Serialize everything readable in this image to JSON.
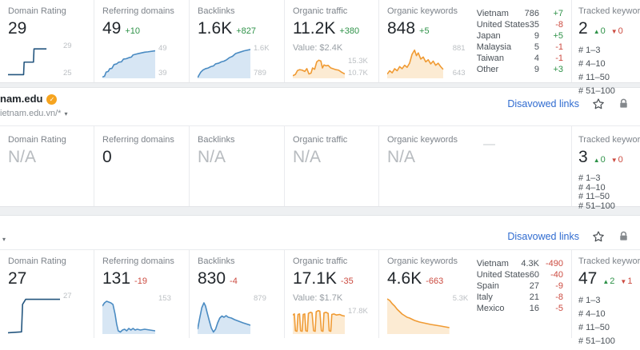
{
  "icons": {
    "up": "▲",
    "down": "▼",
    "caret": "▾",
    "check": "✓"
  },
  "colors": {
    "green": "#2e9248",
    "red": "#cc4b40",
    "link_blue": "#2f6bd0",
    "chart_blue": "#4a8bc2",
    "chart_navy": "#24567f",
    "chart_orange": "#f09b34",
    "badge_orange": "#f6a41f"
  },
  "row1": {
    "dr": {
      "label": "Domain Rating",
      "value": "29",
      "ymax": "29",
      "ymin": "25",
      "spark": {
        "color": "#24567f",
        "fill": false,
        "points": [
          [
            0,
            90
          ],
          [
            30,
            90
          ],
          [
            31,
            56
          ],
          [
            49,
            56
          ],
          [
            50,
            20
          ],
          [
            74,
            20
          ]
        ]
      }
    },
    "rd": {
      "label": "Referring domains",
      "value": "49",
      "delta": "+10",
      "dclass": "delta up",
      "ymax": "49",
      "ymin": "39",
      "spark": {
        "color": "#4a8bc2",
        "fill": true,
        "fillColor": "rgba(122,171,219,0.30)",
        "points": [
          [
            0,
            96
          ],
          [
            4,
            94
          ],
          [
            7,
            82
          ],
          [
            11,
            80
          ],
          [
            14,
            72
          ],
          [
            18,
            71
          ],
          [
            22,
            60
          ],
          [
            27,
            58
          ],
          [
            31,
            53
          ],
          [
            36,
            52
          ],
          [
            40,
            44
          ],
          [
            45,
            43
          ],
          [
            50,
            40
          ],
          [
            55,
            38
          ],
          [
            58,
            32
          ],
          [
            63,
            30
          ],
          [
            68,
            28
          ],
          [
            74,
            26
          ],
          [
            80,
            24
          ],
          [
            86,
            23
          ],
          [
            100,
            20
          ]
        ]
      }
    },
    "bl": {
      "label": "Backlinks",
      "value": "1.6K",
      "delta": "+827",
      "dclass": "delta up",
      "ymax": "1.6K",
      "ymin": "789",
      "spark": {
        "color": "#4a8bc2",
        "fill": true,
        "fillColor": "rgba(122,171,219,0.30)",
        "points": [
          [
            0,
            98
          ],
          [
            6,
            82
          ],
          [
            10,
            76
          ],
          [
            15,
            72
          ],
          [
            20,
            70
          ],
          [
            25,
            66
          ],
          [
            30,
            64
          ],
          [
            34,
            58
          ],
          [
            40,
            56
          ],
          [
            45,
            52
          ],
          [
            50,
            50
          ],
          [
            55,
            46
          ],
          [
            60,
            40
          ],
          [
            66,
            36
          ],
          [
            72,
            28
          ],
          [
            80,
            24
          ],
          [
            88,
            20
          ],
          [
            100,
            16
          ]
        ]
      }
    },
    "ot": {
      "label": "Organic traffic",
      "value": "11.2K",
      "delta": "+380",
      "dclass": "delta up",
      "subvalue": "Value: $2.4K",
      "ymax": "15.3K",
      "ymin": "10.7K",
      "spark": {
        "color": "#f09b34",
        "fill": true,
        "fillColor": "rgba(243,166,56,0.22)",
        "points": [
          [
            0,
            88
          ],
          [
            5,
            82
          ],
          [
            9,
            64
          ],
          [
            13,
            60
          ],
          [
            18,
            62
          ],
          [
            23,
            68
          ],
          [
            27,
            55
          ],
          [
            31,
            80
          ],
          [
            35,
            76
          ],
          [
            38,
            52
          ],
          [
            42,
            58
          ],
          [
            46,
            24
          ],
          [
            50,
            16
          ],
          [
            54,
            20
          ],
          [
            57,
            52
          ],
          [
            60,
            38
          ],
          [
            64,
            42
          ],
          [
            68,
            40
          ],
          [
            73,
            52
          ],
          [
            78,
            56
          ],
          [
            83,
            60
          ],
          [
            88,
            62
          ],
          [
            94,
            72
          ],
          [
            100,
            80
          ]
        ]
      }
    },
    "ok": {
      "label": "Organic keywords",
      "value": "848",
      "delta": "+5",
      "dclass": "delta up",
      "ymax": "881",
      "ymin": "643",
      "spark": {
        "color": "#f09b34",
        "fill": true,
        "fillColor": "rgba(243,166,56,0.22)",
        "points": [
          [
            0,
            88
          ],
          [
            4,
            78
          ],
          [
            8,
            84
          ],
          [
            12,
            72
          ],
          [
            16,
            78
          ],
          [
            20,
            66
          ],
          [
            24,
            72
          ],
          [
            28,
            62
          ],
          [
            32,
            68
          ],
          [
            36,
            56
          ],
          [
            40,
            30
          ],
          [
            44,
            18
          ],
          [
            47,
            34
          ],
          [
            50,
            26
          ],
          [
            54,
            44
          ],
          [
            58,
            38
          ],
          [
            62,
            52
          ],
          [
            66,
            46
          ],
          [
            70,
            58
          ],
          [
            74,
            50
          ],
          [
            78,
            62
          ],
          [
            82,
            56
          ],
          [
            86,
            66
          ],
          [
            90,
            74
          ]
        ]
      }
    },
    "countries": [
      {
        "name": "Vietnam",
        "value": "786",
        "delta": "+7",
        "dir": "up"
      },
      {
        "name": "United States",
        "value": "35",
        "delta": "-8",
        "dir": "down"
      },
      {
        "name": "Japan",
        "value": "9",
        "delta": "+5",
        "dir": "up"
      },
      {
        "name": "Malaysia",
        "value": "5",
        "delta": "-1",
        "dir": "down"
      },
      {
        "name": "Taiwan",
        "value": "4",
        "delta": "-1",
        "dir": "down"
      },
      {
        "name": "Other",
        "value": "9",
        "delta": "+3",
        "dir": "up"
      }
    ],
    "tracked": {
      "label": "Tracked keywords",
      "value": "2",
      "up": "0",
      "down": "0",
      "ranks": [
        "# 1–3",
        "# 4–10",
        "# 11–50",
        "# 51–100"
      ]
    }
  },
  "site2": {
    "domain": "nam.edu",
    "subdomain": "ietnam.edu.vn/*",
    "disavowed": "Disavowed links"
  },
  "row2": {
    "dr": {
      "label": "Domain Rating",
      "value": "N/A",
      "vclass": "bigval muted"
    },
    "rd": {
      "label": "Referring domains",
      "value": "0",
      "vclass": "bigval"
    },
    "bl": {
      "label": "Backlinks",
      "value": "N/A",
      "vclass": "bigval muted"
    },
    "ot": {
      "label": "Organic traffic",
      "value": "N/A",
      "vclass": "bigval muted"
    },
    "ok": {
      "label": "Organic keywords",
      "value": "N/A",
      "vclass": "bigval muted",
      "placeholder": "—"
    },
    "tracked": {
      "label": "Tracked keywords",
      "value": "3",
      "up": "0",
      "down": "0",
      "ranks": [
        "# 1–3",
        "# 4–10",
        "# 11–50",
        "# 51–100"
      ]
    }
  },
  "site3": {
    "disavowed": "Disavowed links"
  },
  "row3": {
    "dr": {
      "label": "Domain Rating",
      "value": "27",
      "ymax": "27",
      "ymin": "",
      "spark": {
        "color": "#24567f",
        "fill": false,
        "points": [
          [
            0,
            97
          ],
          [
            26,
            95
          ],
          [
            28,
            30
          ],
          [
            34,
            18
          ],
          [
            100,
            18
          ]
        ]
      }
    },
    "rd": {
      "label": "Referring domains",
      "value": "131",
      "delta": "-19",
      "dclass": "delta down",
      "ymax": "153",
      "ymin": "",
      "spark": {
        "color": "#4a8bc2",
        "fill": true,
        "fillColor": "rgba(122,171,219,0.30)",
        "points": [
          [
            0,
            30
          ],
          [
            4,
            22
          ],
          [
            8,
            18
          ],
          [
            12,
            20
          ],
          [
            16,
            22
          ],
          [
            20,
            26
          ],
          [
            24,
            50
          ],
          [
            27,
            75
          ],
          [
            30,
            92
          ],
          [
            34,
            95
          ],
          [
            38,
            90
          ],
          [
            42,
            88
          ],
          [
            46,
            92
          ],
          [
            50,
            86
          ],
          [
            54,
            90
          ],
          [
            58,
            86
          ],
          [
            62,
            90
          ],
          [
            66,
            88
          ],
          [
            72,
            90
          ],
          [
            80,
            88
          ],
          [
            90,
            90
          ],
          [
            100,
            92
          ]
        ]
      }
    },
    "bl": {
      "label": "Backlinks",
      "value": "830",
      "delta": "-4",
      "dclass": "delta down",
      "ymax": "879",
      "ymin": "",
      "spark": {
        "color": "#4a8bc2",
        "fill": true,
        "fillColor": "rgba(122,171,219,0.30)",
        "points": [
          [
            0,
            88
          ],
          [
            4,
            60
          ],
          [
            8,
            34
          ],
          [
            12,
            22
          ],
          [
            15,
            30
          ],
          [
            18,
            46
          ],
          [
            22,
            66
          ],
          [
            26,
            85
          ],
          [
            30,
            95
          ],
          [
            34,
            88
          ],
          [
            38,
            72
          ],
          [
            42,
            60
          ],
          [
            46,
            55
          ],
          [
            50,
            58
          ],
          [
            54,
            54
          ],
          [
            58,
            58
          ],
          [
            64,
            60
          ],
          [
            70,
            64
          ],
          [
            78,
            68
          ],
          [
            86,
            72
          ],
          [
            100,
            78
          ]
        ]
      }
    },
    "ot": {
      "label": "Organic traffic",
      "value": "17.1K",
      "delta": "-35",
      "dclass": "delta down",
      "subvalue": "Value: $1.7K",
      "ymax": "17.8K",
      "ymin": "",
      "spark": {
        "color": "#f09b34",
        "fill": true,
        "fillColor": "rgba(243,166,56,0.22)",
        "points": [
          [
            0,
            30
          ],
          [
            3,
            26
          ],
          [
            5,
            88
          ],
          [
            8,
            90
          ],
          [
            10,
            28
          ],
          [
            13,
            26
          ],
          [
            15,
            88
          ],
          [
            18,
            90
          ],
          [
            20,
            28
          ],
          [
            23,
            26
          ],
          [
            25,
            88
          ],
          [
            28,
            90
          ],
          [
            30,
            24
          ],
          [
            34,
            20
          ],
          [
            37,
            22
          ],
          [
            40,
            88
          ],
          [
            43,
            90
          ],
          [
            45,
            18
          ],
          [
            49,
            14
          ],
          [
            52,
            16
          ],
          [
            55,
            88
          ],
          [
            58,
            90
          ],
          [
            60,
            22
          ],
          [
            64,
            20
          ],
          [
            68,
            24
          ],
          [
            70,
            88
          ],
          [
            73,
            90
          ],
          [
            75,
            28
          ],
          [
            79,
            26
          ],
          [
            84,
            30
          ],
          [
            90,
            28
          ],
          [
            95,
            32
          ],
          [
            100,
            34
          ]
        ]
      }
    },
    "ok": {
      "label": "Organic keywords",
      "value": "4.6K",
      "delta": "-663",
      "dclass": "delta down",
      "ymax": "5.3K",
      "ymin": "",
      "spark": {
        "color": "#f09b34",
        "fill": true,
        "fillColor": "rgba(243,166,56,0.22)",
        "points": [
          [
            0,
            12
          ],
          [
            4,
            16
          ],
          [
            8,
            24
          ],
          [
            12,
            30
          ],
          [
            16,
            38
          ],
          [
            20,
            44
          ],
          [
            24,
            50
          ],
          [
            28,
            54
          ],
          [
            32,
            58
          ],
          [
            36,
            60
          ],
          [
            40,
            63
          ],
          [
            44,
            66
          ],
          [
            48,
            68
          ],
          [
            52,
            70
          ],
          [
            58,
            72
          ],
          [
            64,
            74
          ],
          [
            70,
            76
          ],
          [
            78,
            78
          ],
          [
            86,
            80
          ],
          [
            100,
            84
          ]
        ]
      }
    },
    "countries": [
      {
        "name": "Vietnam",
        "value": "4.3K",
        "delta": "-490",
        "dir": "down"
      },
      {
        "name": "United States",
        "value": "60",
        "delta": "-40",
        "dir": "down"
      },
      {
        "name": "Spain",
        "value": "27",
        "delta": "-9",
        "dir": "down"
      },
      {
        "name": "Italy",
        "value": "21",
        "delta": "-8",
        "dir": "down"
      },
      {
        "name": "Mexico",
        "value": "16",
        "delta": "-5",
        "dir": "down"
      }
    ],
    "tracked": {
      "label": "Tracked keywords",
      "value": "47",
      "up": "2",
      "down": "1",
      "ranks": [
        "# 1–3",
        "# 4–10",
        "# 11–50",
        "# 51–100"
      ]
    }
  }
}
